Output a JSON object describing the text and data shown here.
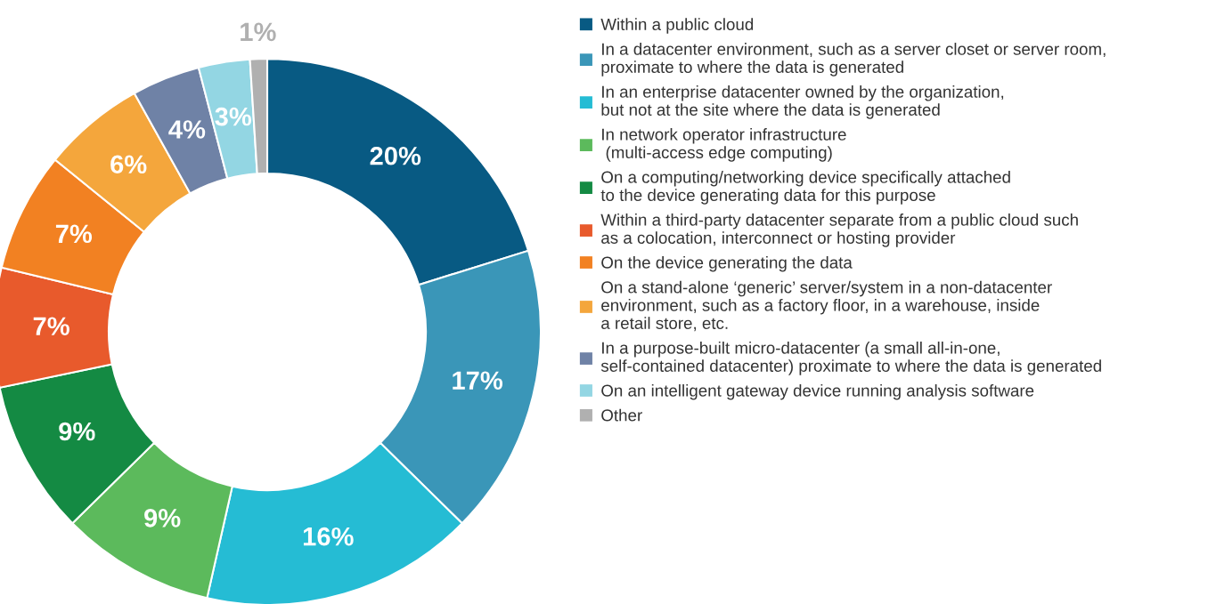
{
  "chart_data": {
    "type": "donut",
    "categories": [
      "Within a public cloud",
      "In a datacenter environment, such as a server closet or server room,\nproximate to where the data is generated",
      "In an enterprise datacenter owned by the organization,\nbut not at the site where the data is generated",
      "In network operator infrastructure\n (multi-access edge computing)",
      "On a computing/networking device specifically attached\nto the device generating data for this purpose",
      "Within a third-party datacenter separate from a public cloud such\nas a colocation, interconnect or hosting provider",
      "On the device generating the data",
      "On a stand-alone ‘generic’ server/system in a non-datacenter\nenvironment, such as a factory floor, in a warehouse, inside\na retail store, etc.",
      "In a purpose-built micro-datacenter (a small all-in-one,\nself-contained datacenter) proximate to where the data is generated",
      "On an intelligent gateway device running analysis software",
      "Other"
    ],
    "values": [
      20,
      17,
      16,
      9,
      9,
      7,
      7,
      6,
      4,
      3,
      1
    ],
    "colors": [
      "#085a83",
      "#3a96b8",
      "#25bcd4",
      "#5cba5c",
      "#148a43",
      "#e85a2c",
      "#f28122",
      "#f4a63c",
      "#6f82a6",
      "#93d6e3",
      "#b0b0b0"
    ],
    "value_labels": [
      "20%",
      "17%",
      "16%",
      "9%",
      "9%",
      "7%",
      "7%",
      "6%",
      "4%",
      "3%",
      "1%"
    ],
    "legend": "right"
  }
}
